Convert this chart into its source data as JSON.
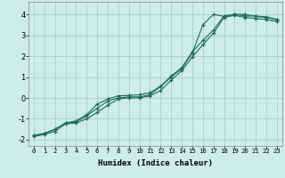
{
  "xlabel": "Humidex (Indice chaleur)",
  "ylabel": "",
  "xlim": [
    -0.5,
    23.5
  ],
  "ylim": [
    -2.3,
    4.6
  ],
  "bg_color": "#ceecea",
  "grid_color": "#aed4d0",
  "line_color": "#1a6b5a",
  "xticks": [
    0,
    1,
    2,
    3,
    4,
    5,
    6,
    7,
    8,
    9,
    10,
    11,
    12,
    13,
    14,
    15,
    16,
    17,
    18,
    19,
    20,
    21,
    22,
    23
  ],
  "yticks": [
    -2,
    -1,
    0,
    1,
    2,
    3,
    4
  ],
  "line1_x": [
    0,
    1,
    2,
    3,
    4,
    5,
    6,
    7,
    8,
    9,
    10,
    11,
    12,
    13,
    14,
    15,
    16,
    17,
    18,
    19,
    20,
    21,
    22,
    23
  ],
  "line1_y": [
    -1.8,
    -1.7,
    -1.5,
    -1.2,
    -1.15,
    -0.85,
    -0.5,
    -0.15,
    0.0,
    0.05,
    0.05,
    0.15,
    0.55,
    1.0,
    1.4,
    2.15,
    3.5,
    4.0,
    3.9,
    4.0,
    4.0,
    3.9,
    3.85,
    3.75
  ],
  "line2_x": [
    0,
    1,
    2,
    3,
    4,
    5,
    6,
    7,
    8,
    9,
    10,
    11,
    12,
    13,
    14,
    15,
    16,
    17,
    18,
    19,
    20,
    21,
    22,
    23
  ],
  "line2_y": [
    -1.8,
    -1.7,
    -1.5,
    -1.2,
    -1.1,
    -0.8,
    -0.3,
    -0.05,
    0.1,
    0.12,
    0.15,
    0.25,
    0.55,
    1.05,
    1.45,
    2.2,
    2.75,
    3.25,
    3.92,
    4.0,
    3.92,
    3.92,
    3.88,
    3.75
  ],
  "line3_x": [
    0,
    1,
    2,
    3,
    4,
    5,
    6,
    7,
    8,
    9,
    10,
    11,
    12,
    13,
    14,
    15,
    16,
    17,
    18,
    19,
    20,
    21,
    22,
    23
  ],
  "line3_y": [
    -1.85,
    -1.75,
    -1.6,
    -1.25,
    -1.2,
    -1.0,
    -0.7,
    -0.35,
    -0.05,
    0.0,
    0.0,
    0.1,
    0.35,
    0.85,
    1.3,
    1.95,
    2.55,
    3.1,
    3.85,
    3.95,
    3.85,
    3.8,
    3.75,
    3.65
  ]
}
